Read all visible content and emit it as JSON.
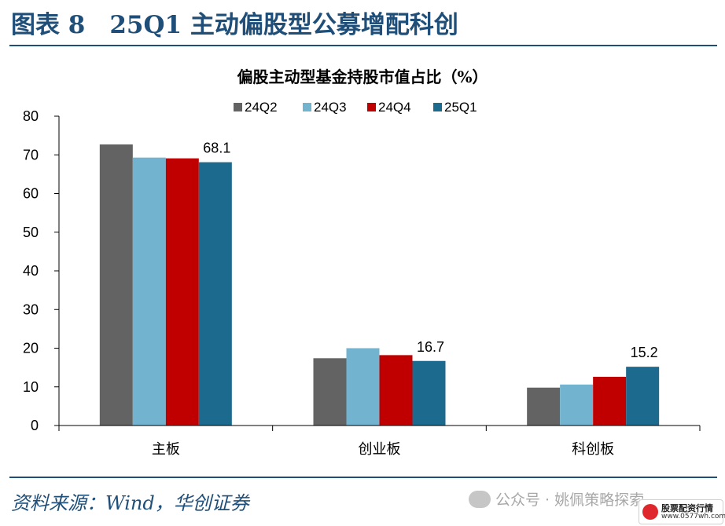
{
  "figure": {
    "title": "图表 8　25Q1 主动偏股型公募增配科创",
    "source": "资料来源：Wind，华创证券"
  },
  "watermark": {
    "text": "公众号 · 姚佩策略探索",
    "badge_name": "股票配资行情",
    "badge_url": "www.0577wh.com"
  },
  "chart_data": {
    "type": "bar",
    "title": "偏股主动型基金持股市值占比（%）",
    "categories": [
      "主板",
      "创业板",
      "科创板"
    ],
    "series": [
      {
        "name": "24Q2",
        "color": "#636363",
        "values": [
          72.7,
          17.4,
          9.8
        ]
      },
      {
        "name": "24Q3",
        "color": "#72b4d0",
        "values": [
          69.3,
          20.0,
          10.6
        ]
      },
      {
        "name": "24Q4",
        "color": "#c00000",
        "values": [
          69.1,
          18.2,
          12.6
        ]
      },
      {
        "name": "25Q1",
        "color": "#1c6a8e",
        "values": [
          68.1,
          16.7,
          15.2
        ]
      }
    ],
    "data_labels": [
      {
        "series": "25Q1",
        "category": "主板",
        "text": "68.1"
      },
      {
        "series": "25Q1",
        "category": "创业板",
        "text": "16.7"
      },
      {
        "series": "25Q1",
        "category": "科创板",
        "text": "15.2"
      }
    ],
    "y_ticks": [
      "0",
      "10",
      "20",
      "30",
      "40",
      "50",
      "60",
      "70",
      "80"
    ],
    "ylim": [
      0,
      80
    ],
    "legend_position": "top-center",
    "grid": false
  }
}
